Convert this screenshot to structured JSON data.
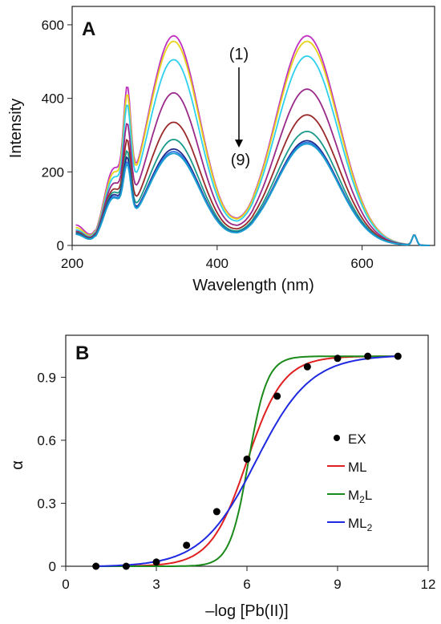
{
  "chart_data": [
    {
      "panel": "A",
      "type": "line",
      "xlabel": "Wavelength (nm)",
      "ylabel": "Intensity",
      "xlim": [
        200,
        700
      ],
      "ylim": [
        0,
        650
      ],
      "xticks": [
        200,
        400,
        600
      ],
      "yticks": [
        0,
        200,
        400,
        600
      ],
      "grid": false,
      "annotation": {
        "from": "(1)",
        "to": "(9)"
      },
      "series": [
        {
          "color": "#c030c0",
          "peaks": [
            570,
            570
          ],
          "base": 55,
          "shoulder": [
            170,
            265
          ]
        },
        {
          "color": "#e8d21a",
          "peaks": [
            555,
            555
          ],
          "base": 48,
          "shoulder": [
            160,
            250
          ]
        },
        {
          "color": "#2ed0ec",
          "peaks": [
            505,
            515
          ],
          "base": 42,
          "shoulder": [
            150,
            235
          ]
        },
        {
          "color": "#9a2a8a",
          "peaks": [
            415,
            425
          ],
          "base": 38,
          "shoulder": [
            140,
            205
          ]
        },
        {
          "color": "#9a2a2a",
          "peaks": [
            335,
            355
          ],
          "base": 36,
          "shoulder": [
            130,
            180
          ]
        },
        {
          "color": "#1a9a8a",
          "peaks": [
            288,
            310
          ],
          "base": 34,
          "shoulder": [
            125,
            160
          ]
        },
        {
          "color": "#1f2a8a",
          "peaks": [
            262,
            285
          ],
          "base": 32,
          "shoulder": [
            120,
            150
          ]
        },
        {
          "color": "#2a78e0",
          "peaks": [
            255,
            280
          ],
          "base": 30,
          "shoulder": [
            115,
            140
          ]
        },
        {
          "color": "#1aa0d0",
          "peaks": [
            250,
            276
          ],
          "base": 30,
          "shoulder": [
            112,
            135
          ]
        }
      ]
    },
    {
      "panel": "B",
      "type": "scatter",
      "xlabel": "–log [Pb(II)]",
      "ylabel": "α",
      "xlim": [
        0,
        12
      ],
      "ylim": [
        0,
        1.1
      ],
      "xticks": [
        0,
        3,
        6,
        9,
        12
      ],
      "yticks": [
        0,
        0.3,
        0.6,
        0.9
      ],
      "legend_position": "center-right",
      "points": {
        "name": "EX",
        "color": "#000000",
        "x": [
          1,
          2,
          3,
          4,
          5,
          6,
          7,
          8,
          9,
          10,
          11
        ],
        "y": [
          0.0,
          0.0,
          0.02,
          0.1,
          0.26,
          0.51,
          0.81,
          0.95,
          0.99,
          1.0,
          1.0
        ]
      },
      "series": [
        {
          "name": "ML",
          "color": "#e02020"
        },
        {
          "name": "M2L",
          "name_main": "M",
          "name_sub": "2",
          "name_tail": "L",
          "color": "#1a8a1a"
        },
        {
          "name": "ML2",
          "name_main": "ML",
          "name_sub": "2",
          "name_tail": "",
          "color": "#1f2ae0"
        }
      ]
    }
  ]
}
